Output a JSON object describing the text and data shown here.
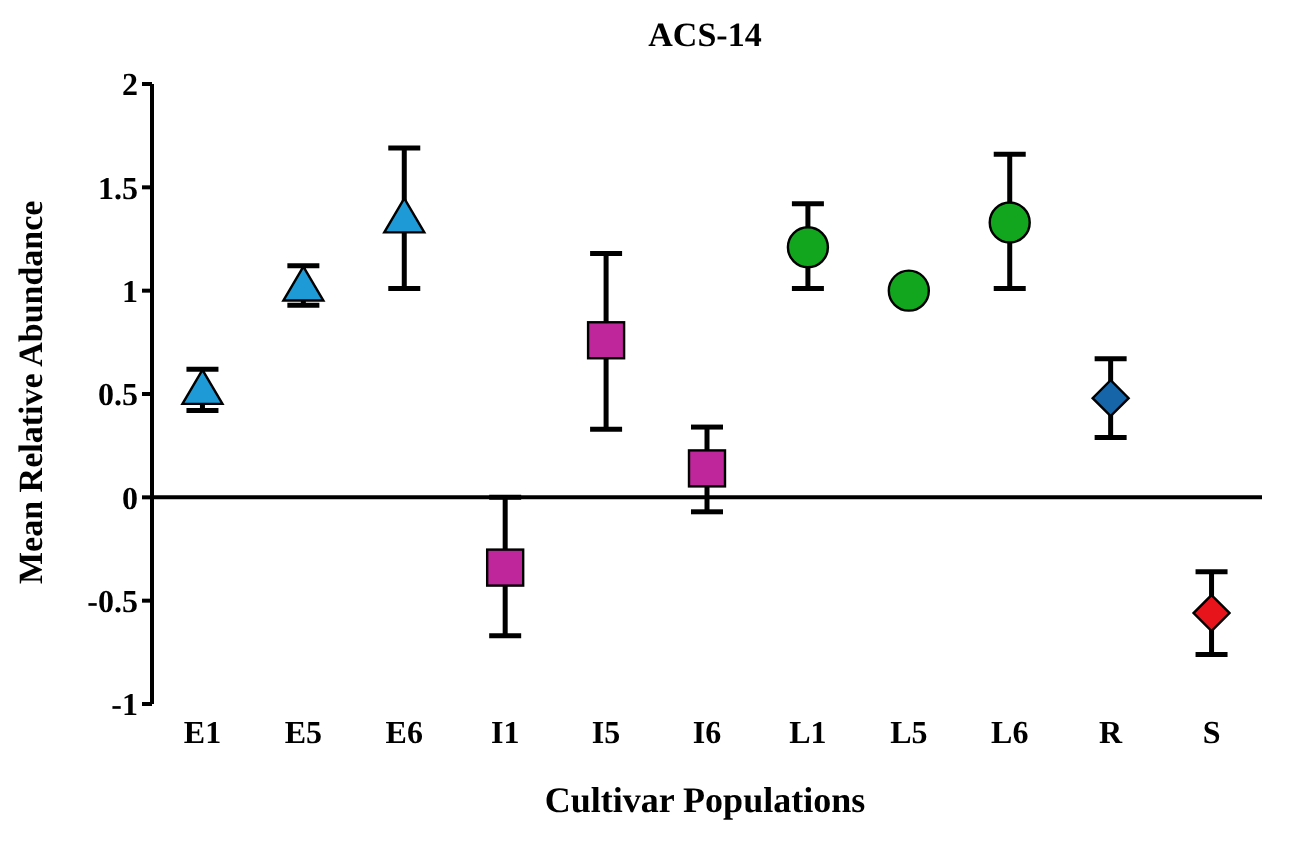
{
  "chart_data": {
    "type": "scatter",
    "title": "ACS-14",
    "xlabel": "Cultivar Populations",
    "ylabel": "Mean Relative Abundance",
    "categories": [
      "E1",
      "E5",
      "E6",
      "I1",
      "I5",
      "I6",
      "L1",
      "L5",
      "L6",
      "R",
      "S"
    ],
    "series": [
      {
        "color": "#1e9bd7",
        "marker": "triangle",
        "values": [
          0.52,
          1.02,
          1.35,
          null,
          null,
          null,
          null,
          null,
          null,
          null,
          null
        ],
        "errors": [
          [
            0.42,
            0.62
          ],
          [
            0.93,
            1.12
          ],
          [
            1.01,
            1.69
          ],
          null,
          null,
          null,
          null,
          null,
          null,
          null,
          null
        ]
      },
      {
        "color": "#c0269b",
        "marker": "square",
        "values": [
          null,
          null,
          null,
          -0.34,
          0.76,
          0.14,
          null,
          null,
          null,
          null,
          null
        ],
        "errors": [
          null,
          null,
          null,
          [
            -0.67,
            0
          ],
          [
            0.33,
            1.18
          ],
          [
            -0.07,
            0.34
          ],
          null,
          null,
          null,
          null,
          null
        ]
      },
      {
        "color": "#12a51e",
        "marker": "circle",
        "values": [
          null,
          null,
          null,
          null,
          null,
          null,
          1.21,
          1.0,
          1.33,
          null,
          null
        ],
        "errors": [
          null,
          null,
          null,
          null,
          null,
          null,
          [
            1.01,
            1.42
          ],
          null,
          [
            1.01,
            1.66
          ],
          null,
          null
        ]
      },
      {
        "color": "#1565a8",
        "marker": "diamond",
        "values": [
          null,
          null,
          null,
          null,
          null,
          null,
          null,
          null,
          null,
          0.48,
          null
        ],
        "errors": [
          null,
          null,
          null,
          null,
          null,
          null,
          null,
          null,
          null,
          [
            0.29,
            0.67
          ],
          null
        ]
      },
      {
        "color": "#e8141b",
        "marker": "diamond",
        "values": [
          null,
          null,
          null,
          null,
          null,
          null,
          null,
          null,
          null,
          null,
          -0.56
        ],
        "errors": [
          null,
          null,
          null,
          null,
          null,
          null,
          null,
          null,
          null,
          null,
          [
            -0.76,
            -0.36
          ]
        ]
      }
    ],
    "ylim": [
      -1,
      2
    ],
    "yticks": [
      -1,
      -0.5,
      0,
      0.5,
      1,
      1.5,
      2
    ],
    "ref_lines": [
      {
        "axis": "y",
        "value": 0,
        "color": "#000000"
      }
    ],
    "grid": false,
    "legend": false
  }
}
